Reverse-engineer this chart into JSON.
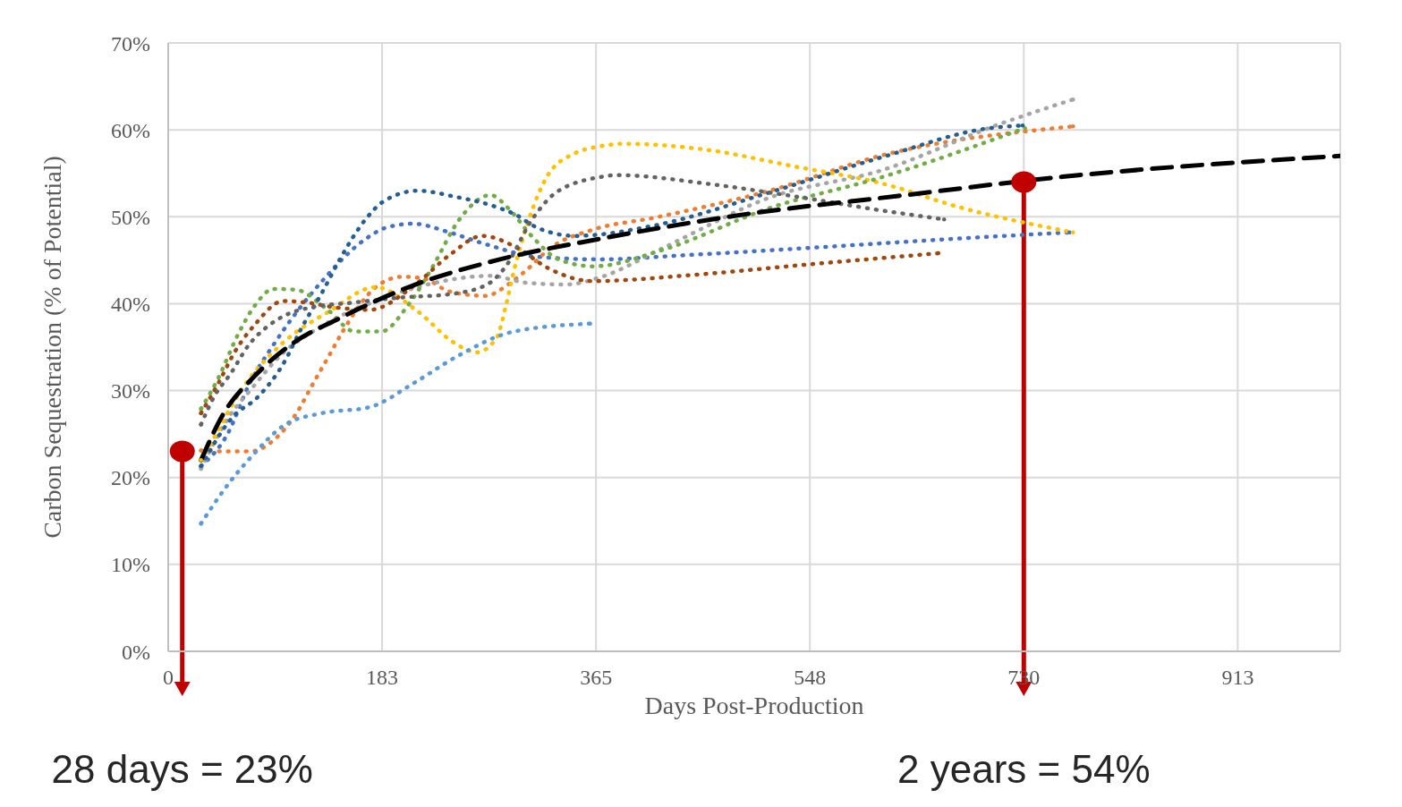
{
  "chart_data": {
    "type": "line",
    "xlabel": "Days Post-Production",
    "ylabel": "Carbon Sequestration (% of Potential)",
    "xlim": [
      0,
      1000
    ],
    "xticks": [
      0,
      {
        "value": 182.5,
        "label": "183"
      },
      365,
      {
        "value": 547.5,
        "label": "548"
      },
      730,
      {
        "value": 912.5,
        "label": "913"
      }
    ],
    "ylim": [
      0,
      70
    ],
    "yticks": [
      {
        "value": 0,
        "label": "0%"
      },
      {
        "value": 10,
        "label": "10%"
      },
      {
        "value": 20,
        "label": "20%"
      },
      {
        "value": 30,
        "label": "30%"
      },
      {
        "value": 40,
        "label": "40%"
      },
      {
        "value": 50,
        "label": "50%"
      },
      {
        "value": 60,
        "label": "60%"
      },
      {
        "value": 70,
        "label": "70%"
      }
    ],
    "grid": true,
    "legend": false,
    "marker": "none",
    "line_style": "dotted",
    "series": [
      {
        "color": "#4472c4",
        "x": [
          28,
          51,
          69,
          90,
          132,
          169,
          187,
          209,
          240,
          272,
          314,
          368,
          444,
          545,
          675,
          769
        ],
        "values": [
          21.3,
          25.1,
          30.7,
          35.3,
          42.7,
          47.5,
          48.8,
          49.2,
          48.2,
          46.8,
          45.4,
          45.1,
          45.6,
          46.4,
          47.5,
          48.2
        ]
      },
      {
        "color": "#ed7d31",
        "x": [
          28,
          49,
          70,
          90,
          109,
          124,
          138,
          148,
          179,
          200,
          218,
          240,
          271,
          290,
          306,
          326,
          362,
          415,
          513,
          610,
          772
        ],
        "values": [
          23.1,
          23,
          23,
          24.3,
          27.3,
          30.9,
          34.2,
          36.6,
          42.1,
          43.1,
          42.9,
          41.4,
          40.9,
          42.2,
          43.9,
          46.4,
          48.5,
          49.9,
          53,
          57.1,
          60.4
        ]
      },
      {
        "color": "#a5a5a5",
        "x": [
          28,
          51,
          71,
          97,
          132,
          177,
          221,
          275,
          306,
          339,
          370,
          422,
          513,
          610,
          708,
          772
        ],
        "values": [
          21,
          26.8,
          30.2,
          34.2,
          37.5,
          40.3,
          42.2,
          43.2,
          42.4,
          42.2,
          43.1,
          46.4,
          52.2,
          55.4,
          60.6,
          63.5
        ]
      },
      {
        "color": "#ffc000",
        "x": [
          28,
          38,
          63,
          90,
          105,
          136,
          177,
          213,
          244,
          263,
          280,
          288,
          295,
          308,
          324,
          347,
          368,
          389,
          454,
          538,
          610,
          675,
          772
        ],
        "values": [
          22,
          24.3,
          30.2,
          34.5,
          36.3,
          39,
          41.9,
          39.1,
          35.5,
          34.4,
          36,
          39.7,
          43.8,
          49.8,
          54.8,
          57.3,
          58.1,
          58.4,
          57.8,
          55.7,
          53.8,
          51.1,
          48.2
        ]
      },
      {
        "color": "#5b9bd5",
        "x": [
          28,
          51,
          71,
          100,
          131,
          172,
          210,
          246,
          295,
          360
        ],
        "values": [
          14.7,
          19.2,
          22.4,
          26.1,
          27.4,
          28.1,
          30.9,
          33.9,
          36.8,
          37.7
        ]
      },
      {
        "color": "#70ad47",
        "x": [
          28,
          43,
          59,
          74,
          90,
          109,
          136,
          159,
          182,
          204,
          225,
          249,
          275,
          290,
          310,
          333,
          363,
          422,
          513,
          610,
          731
        ],
        "values": [
          27.9,
          31.5,
          36.3,
          39.8,
          41.7,
          41.6,
          39.3,
          36.8,
          36.8,
          39.7,
          44.1,
          49.8,
          52.5,
          51,
          47.8,
          45.1,
          44.3,
          46.2,
          51,
          54.6,
          60.2
        ]
      },
      {
        "color": "#255e91",
        "x": [
          28,
          56,
          76,
          100,
          113,
          133,
          146,
          169,
          183,
          213,
          245,
          276,
          297,
          314,
          347,
          415,
          513,
          610,
          701,
          729
        ],
        "values": [
          21.3,
          27.1,
          29.2,
          33.5,
          37,
          41.7,
          45,
          49.8,
          51.7,
          53,
          52.3,
          51.3,
          50.2,
          48.8,
          47.8,
          49,
          52.8,
          56.9,
          60.2,
          60.5
        ]
      },
      {
        "color": "#9e480e",
        "x": [
          28,
          43,
          57,
          74,
          98,
          120,
          141,
          172,
          210,
          241,
          268,
          298,
          324,
          362,
          447,
          545,
          657
        ],
        "values": [
          27.4,
          30.9,
          34.5,
          37.6,
          40.3,
          40.1,
          39.6,
          39.3,
          42.1,
          45.7,
          47.8,
          46.4,
          44.1,
          42.6,
          43.3,
          44.5,
          45.8
        ]
      },
      {
        "color": "#636363",
        "x": [
          28,
          40,
          53,
          69,
          84,
          102,
          123,
          156,
          198,
          241,
          272,
          287,
          311,
          331,
          370,
          382,
          460,
          532,
          610,
          662
        ],
        "values": [
          26.1,
          29.5,
          31.9,
          35.3,
          37.3,
          38.8,
          39.6,
          40.1,
          40.7,
          41.1,
          42.2,
          44.1,
          49.8,
          52.8,
          54.6,
          54.8,
          53.8,
          52.4,
          50.7,
          49.7
        ]
      },
      {
        "type": "scatter",
        "color": "#c00000",
        "marker": "circle",
        "x": [
          12,
          730
        ],
        "values": [
          23,
          54
        ]
      },
      {
        "color": "#000000",
        "line_style": "dashed",
        "x": [
          28,
          47,
          74,
          107,
          146,
          205,
          283,
          370,
          493,
          623,
          763,
          1000
        ],
        "values": [
          22,
          27.3,
          31.7,
          35.5,
          38.3,
          41.9,
          45.1,
          47.5,
          50.3,
          52.4,
          54.6,
          57
        ]
      }
    ],
    "annotations": [
      "28 days = 23%",
      "2 years = 54%"
    ]
  }
}
